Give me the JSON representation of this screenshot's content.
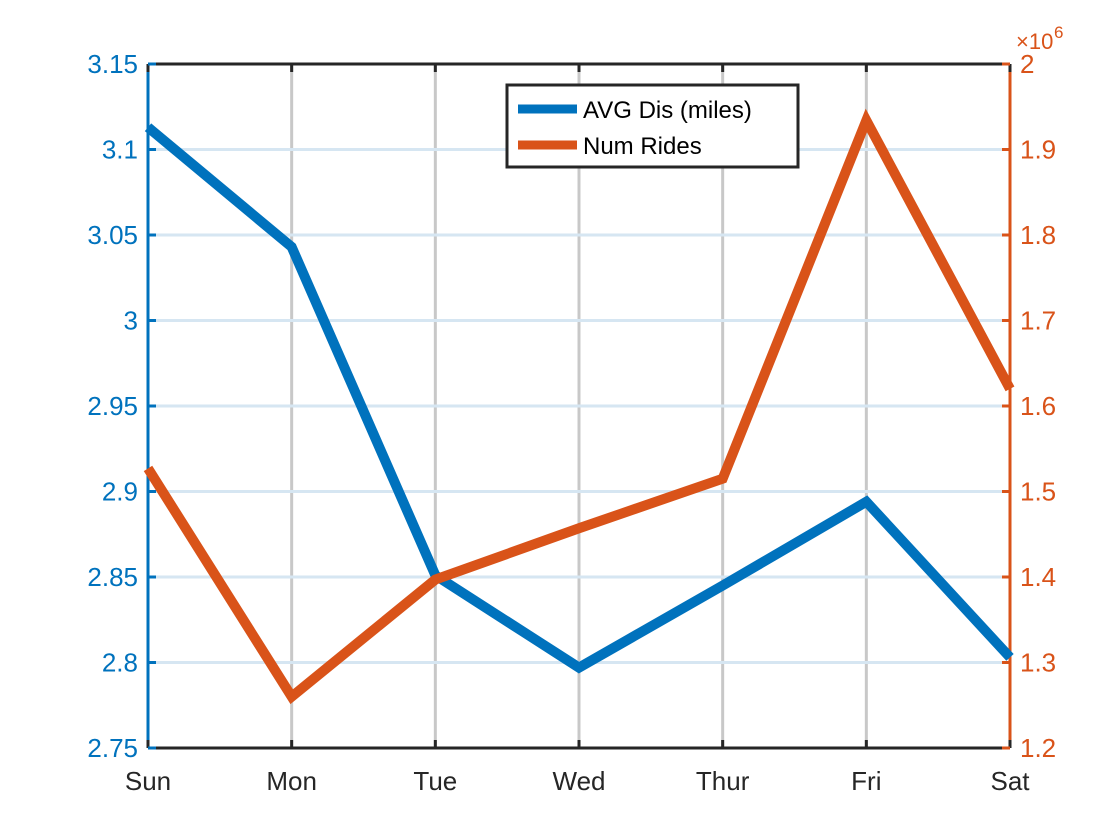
{
  "chart_data": {
    "type": "line",
    "categories": [
      "Sun",
      "Mon",
      "Tue",
      "Wed",
      "Thur",
      "Fri",
      "Sat"
    ],
    "left_axis": {
      "ylim": [
        2.75,
        3.15
      ],
      "ticks": [
        "2.75",
        "2.8",
        "2.85",
        "2.9",
        "2.95",
        "3",
        "3.05",
        "3.1",
        "3.15"
      ],
      "tick_values": [
        2.75,
        2.8,
        2.85,
        2.9,
        2.95,
        3.0,
        3.05,
        3.1,
        3.15
      ],
      "color": "#0072BD"
    },
    "right_axis": {
      "ylim": [
        1.2,
        2.0
      ],
      "ticks": [
        "1.2",
        "1.3",
        "1.4",
        "1.5",
        "1.6",
        "1.7",
        "1.8",
        "1.9",
        "2"
      ],
      "tick_values": [
        1.2,
        1.3,
        1.4,
        1.5,
        1.6,
        1.7,
        1.8,
        1.9,
        2.0
      ],
      "exponent_base": "×10",
      "exponent_power": "6",
      "color": "#D95319"
    },
    "series": [
      {
        "name": "AVG Dis (miles)",
        "axis": "left",
        "color": "#0072BD",
        "values": [
          3.113,
          3.043,
          2.851,
          2.797,
          2.845,
          2.894,
          2.803
        ]
      },
      {
        "name": "Num Rides",
        "axis": "right",
        "color": "#D95319",
        "values": [
          1.527,
          1.26,
          1.397,
          1.457,
          1.515,
          1.934,
          1.62
        ]
      }
    ],
    "grid": true,
    "legend_position": "top-center"
  }
}
